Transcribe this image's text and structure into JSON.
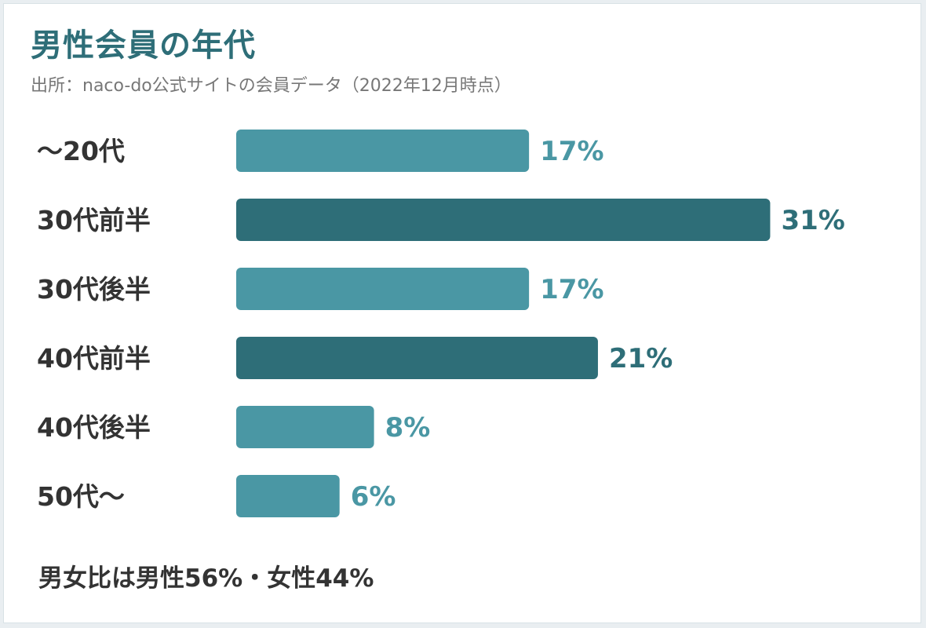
{
  "title": "男性会員の年代",
  "source": "出所：naco-do公式サイトの会員データ（2022年12月時点）",
  "footer": "男女比は男性56%・女性44%",
  "colors": {
    "bar_light": "#4a97a4",
    "bar_dark": "#2e6e78",
    "title": "#2e6e78"
  },
  "chart_data": {
    "type": "bar",
    "orientation": "horizontal",
    "categories": [
      "～20代",
      "30代前半",
      "30代後半",
      "40代前半",
      "40代後半",
      "50代～"
    ],
    "values": [
      17,
      31,
      17,
      21,
      8,
      6
    ],
    "value_labels": [
      "17%",
      "31%",
      "17%",
      "21%",
      "8%",
      "6%"
    ],
    "highlight": [
      false,
      true,
      false,
      true,
      false,
      false
    ],
    "title": "男性会員の年代",
    "xlabel": "",
    "ylabel": "",
    "unit": "%",
    "grid": false,
    "legend": "none"
  }
}
